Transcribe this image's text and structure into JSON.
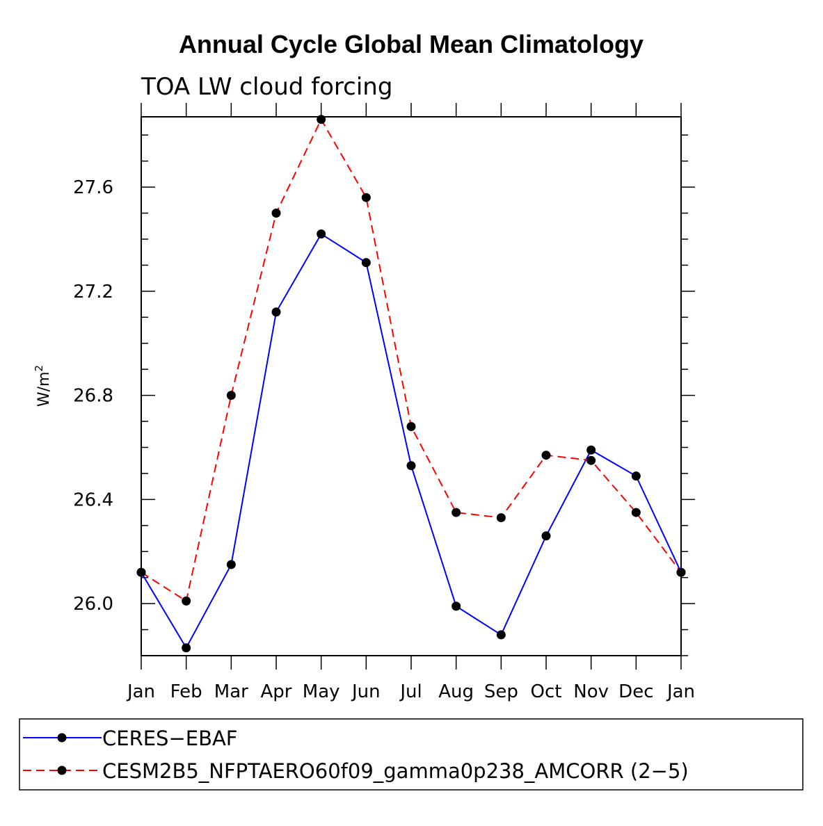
{
  "chart_data": {
    "type": "line",
    "title": "Annual Cycle Global Mean Climatology",
    "subtitle": "TOA LW cloud forcing",
    "ylabel": "W/m",
    "ylabel_superscript": "2",
    "xlabel": "",
    "categories": [
      "Jan",
      "Feb",
      "Mar",
      "Apr",
      "May",
      "Jun",
      "Jul",
      "Aug",
      "Sep",
      "Oct",
      "Nov",
      "Dec",
      "Jan"
    ],
    "ylim": [
      25.8,
      27.87
    ],
    "yticks": [
      "26.0",
      "26.4",
      "26.8",
      "27.2",
      "27.6"
    ],
    "ytick_values": [
      26.0,
      26.4,
      26.8,
      27.2,
      27.6
    ],
    "grid": false,
    "legend_position": "bottom",
    "series": [
      {
        "name": "CERES−EBAF",
        "color": "#0000ff",
        "style": "solid",
        "values": [
          26.12,
          25.83,
          26.15,
          27.12,
          27.42,
          27.31,
          26.53,
          25.99,
          25.88,
          26.26,
          26.59,
          26.49,
          26.12
        ]
      },
      {
        "name": "CESM2B5_NFPTAERO60f09_gamma0p238_AMCORR (2−5)",
        "color": "#ff0000",
        "style": "dashed",
        "values": [
          26.12,
          26.01,
          26.8,
          27.5,
          27.86,
          27.56,
          26.68,
          26.35,
          26.33,
          26.57,
          26.55,
          26.35,
          26.12
        ]
      }
    ]
  }
}
